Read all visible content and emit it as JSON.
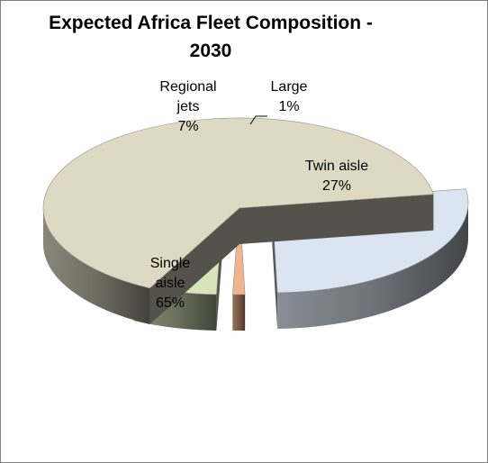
{
  "chart_data": {
    "type": "pie",
    "title_line1": "Expected Africa Fleet Composition -",
    "title_line2": "2030",
    "categories": [
      "Large",
      "Twin aisle",
      "Single aisle",
      "Regional jets"
    ],
    "values": [
      1,
      27,
      65,
      7
    ],
    "data_labels": [
      {
        "category": "Large",
        "lines": [
          "Large",
          "1%"
        ]
      },
      {
        "category": "Twin aisle",
        "lines": [
          "Twin aisle",
          "27%"
        ]
      },
      {
        "category": "Single aisle",
        "lines": [
          "Single",
          "aisle",
          "65%"
        ]
      },
      {
        "category": "Regional jets",
        "lines": [
          "Regional",
          "jets",
          "7%"
        ]
      }
    ],
    "colors": {
      "Large": "#f2b48c",
      "Twin aisle": "#dbe5f1",
      "Single aisle": "#ddd9c3",
      "Regional jets": "#d7e4bc"
    },
    "legend": "none",
    "style": "3d-exploded"
  }
}
